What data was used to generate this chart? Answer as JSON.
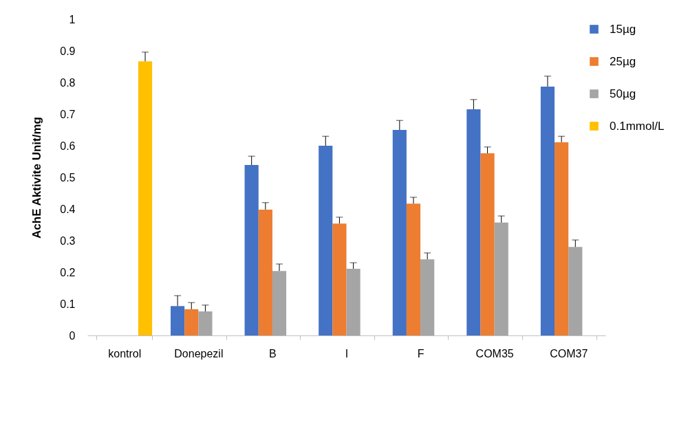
{
  "chart_data": {
    "type": "bar",
    "ylabel": "AchE Aktivite Unit/mg",
    "categories": [
      "kontrol",
      "Donepezil",
      "B",
      "I",
      "F",
      "COM35",
      "COM37"
    ],
    "series": [
      {
        "name": "15µg",
        "color": "#4472c4",
        "values": [
          null,
          0.093,
          0.539,
          0.6,
          0.65,
          0.715,
          0.787
        ],
        "errors": [
          null,
          [
            0.093,
            0.126
          ],
          [
            0.539,
            0.567
          ],
          [
            0.6,
            0.63
          ],
          [
            0.65,
            0.68
          ],
          [
            0.715,
            0.746
          ],
          [
            0.787,
            0.82
          ]
        ]
      },
      {
        "name": "25µg",
        "color": "#ed7d31",
        "values": [
          null,
          0.083,
          0.398,
          0.354,
          0.417,
          0.576,
          0.611
        ],
        "errors": [
          null,
          [
            0.083,
            0.104
          ],
          [
            0.398,
            0.42
          ],
          [
            0.354,
            0.374
          ],
          [
            0.417,
            0.437
          ],
          [
            0.576,
            0.596
          ],
          [
            0.611,
            0.63
          ]
        ]
      },
      {
        "name": "50µg",
        "color": "#a5a5a5",
        "values": [
          null,
          0.076,
          0.204,
          0.211,
          0.241,
          0.357,
          0.28
        ],
        "errors": [
          null,
          [
            0.076,
            0.096
          ],
          [
            0.204,
            0.226
          ],
          [
            0.211,
            0.23
          ],
          [
            0.241,
            0.261
          ],
          [
            0.357,
            0.378
          ],
          [
            0.28,
            0.302
          ]
        ]
      },
      {
        "name": "0.1mmol/L",
        "color": "#ffc000",
        "values": [
          0.867,
          null,
          null,
          null,
          null,
          null,
          null
        ],
        "errors": [
          [
            0.867,
            0.896
          ],
          null,
          null,
          null,
          null,
          null,
          null
        ]
      }
    ],
    "ylim": [
      0,
      1
    ],
    "yticks": [
      0,
      0.1,
      0.2,
      0.3,
      0.4,
      0.5,
      0.6,
      0.7,
      0.8,
      0.9,
      1
    ],
    "grid": false,
    "legend": "top right"
  }
}
